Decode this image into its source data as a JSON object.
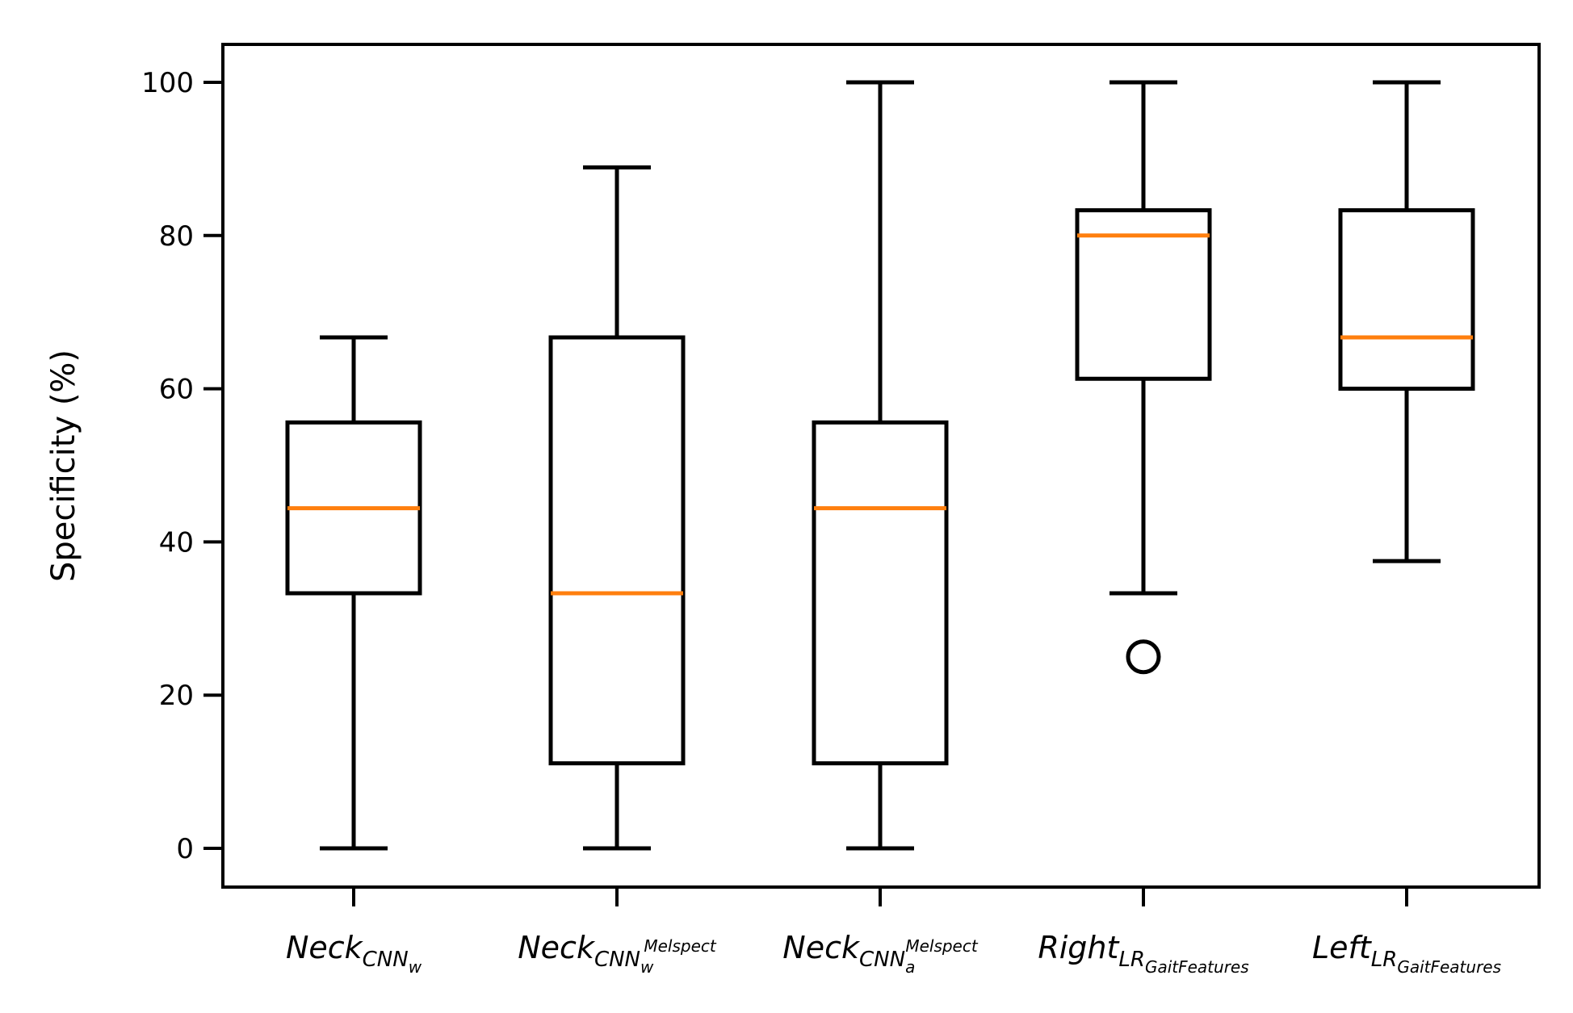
{
  "chart_data": {
    "type": "box",
    "ylabel": "Specificity (%)",
    "ylim": [
      -5,
      105
    ],
    "yticks": [
      0,
      20,
      40,
      60,
      80,
      100
    ],
    "median_color": "#ff7f0e",
    "box_color": "#000000",
    "categories": [
      {
        "base": "Neck",
        "sub": "CNN",
        "subsub": "w",
        "sup": ""
      },
      {
        "base": "Neck",
        "sub": "CNN",
        "subsub": "w",
        "sup": "Melspect"
      },
      {
        "base": "Neck",
        "sub": "CNN",
        "subsub": "a",
        "sup": "Melspect"
      },
      {
        "base": "Right",
        "sub": "LR",
        "subsub": "GaitFeatures",
        "sup": ""
      },
      {
        "base": "Left",
        "sub": "LR",
        "subsub": "GaitFeatures",
        "sup": ""
      }
    ],
    "boxes": [
      {
        "whisker_low": 0,
        "q1": 33.3,
        "median": 44.4,
        "q3": 55.6,
        "whisker_high": 66.7,
        "outliers": []
      },
      {
        "whisker_low": 0,
        "q1": 11.1,
        "median": 33.3,
        "q3": 66.7,
        "whisker_high": 88.9,
        "outliers": []
      },
      {
        "whisker_low": 0,
        "q1": 11.1,
        "median": 44.4,
        "q3": 55.6,
        "whisker_high": 100,
        "outliers": []
      },
      {
        "whisker_low": 33.3,
        "q1": 61.3,
        "median": 80,
        "q3": 83.3,
        "whisker_high": 100,
        "outliers": [
          25
        ]
      },
      {
        "whisker_low": 37.5,
        "q1": 60,
        "median": 66.7,
        "q3": 83.3,
        "whisker_high": 100,
        "outliers": []
      }
    ]
  }
}
